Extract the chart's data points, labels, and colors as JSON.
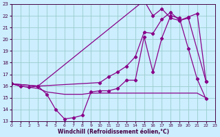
{
  "xlabel": "Windchill (Refroidissement éolien,°C)",
  "bg_color": "#cceeff",
  "line_color": "#880088",
  "grid_color": "#99cccc",
  "xlim": [
    0,
    23
  ],
  "ylim": [
    13,
    23
  ],
  "yticks": [
    13,
    14,
    15,
    16,
    17,
    18,
    19,
    20,
    21,
    22,
    23
  ],
  "xticks": [
    0,
    1,
    2,
    3,
    4,
    5,
    6,
    7,
    8,
    9,
    10,
    11,
    12,
    13,
    14,
    15,
    16,
    17,
    18,
    19,
    20,
    21,
    22,
    23
  ],
  "line1_x": [
    0,
    1,
    2,
    3,
    4,
    5,
    6,
    7,
    8,
    9,
    10,
    11,
    12,
    13,
    14,
    15,
    16,
    17,
    18,
    19,
    20,
    21,
    22
  ],
  "line1_y": [
    16.2,
    16.0,
    15.9,
    16.0,
    15.3,
    14.0,
    13.2,
    13.3,
    13.5,
    15.5,
    15.6,
    15.6,
    15.8,
    16.5,
    16.5,
    20.2,
    17.2,
    20.1,
    22.0,
    21.8,
    19.2,
    16.6,
    14.9
  ],
  "line2_x": [
    0,
    1,
    2,
    3,
    4,
    5,
    6,
    7,
    8,
    9,
    10,
    11,
    12,
    13,
    14,
    15,
    16,
    17,
    18,
    19,
    20,
    21,
    22
  ],
  "line2_y": [
    16.2,
    16.0,
    15.9,
    15.8,
    15.5,
    15.4,
    15.3,
    15.3,
    15.3,
    15.4,
    15.4,
    15.4,
    15.4,
    15.4,
    15.4,
    15.4,
    15.4,
    15.4,
    15.4,
    15.4,
    15.4,
    15.4,
    15.0
  ],
  "line3_x": [
    0,
    3,
    15,
    16,
    17,
    18,
    19,
    20,
    22
  ],
  "line3_y": [
    16.2,
    16.0,
    23.3,
    22.0,
    22.6,
    21.8,
    21.6,
    21.8,
    16.4
  ],
  "line4_x": [
    0,
    3,
    10,
    11,
    12,
    13,
    14,
    15,
    16,
    17,
    18,
    19,
    20,
    21,
    22
  ],
  "line4_y": [
    16.2,
    16.0,
    16.3,
    16.8,
    17.2,
    17.7,
    18.5,
    20.6,
    20.5,
    21.7,
    22.3,
    21.6,
    21.9,
    22.2,
    16.4
  ]
}
